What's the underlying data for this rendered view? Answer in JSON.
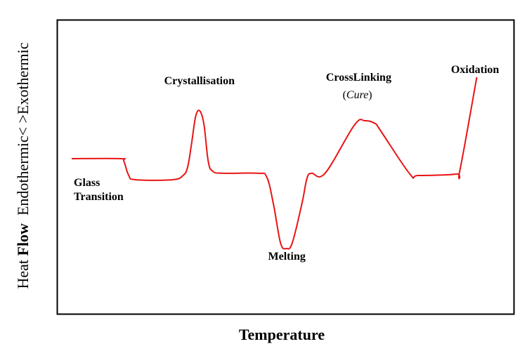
{
  "chart_data": {
    "type": "line",
    "xlabel": "Temperature",
    "ylabel": {
      "prefix": "Heat ",
      "bold": "Flow",
      "suffix": "  Endothermic< >Exothermic"
    },
    "grid": false,
    "legend": "none",
    "line_color": "#e81414",
    "xlim": [
      0,
      100
    ],
    "ylim": [
      0,
      100
    ],
    "series": [
      {
        "values": [
          {
            "x": 0,
            "y": 51
          },
          {
            "x": 11.6,
            "y": 51
          },
          {
            "x": 12.4,
            "y": 50.2
          },
          {
            "x": 13.6,
            "y": 45
          },
          {
            "x": 15.2,
            "y": 43.5
          },
          {
            "x": 24.0,
            "y": 43.5
          },
          {
            "x": 26.5,
            "y": 45
          },
          {
            "x": 27.6,
            "y": 48
          },
          {
            "x": 28.5,
            "y": 56
          },
          {
            "x": 29.5,
            "y": 66
          },
          {
            "x": 30.5,
            "y": 68
          },
          {
            "x": 31.5,
            "y": 63
          },
          {
            "x": 32.5,
            "y": 50
          },
          {
            "x": 33.6,
            "y": 46.5
          },
          {
            "x": 36.0,
            "y": 45.8
          },
          {
            "x": 44.3,
            "y": 45.8
          },
          {
            "x": 46.4,
            "y": 44.5
          },
          {
            "x": 48.0,
            "y": 35
          },
          {
            "x": 49.7,
            "y": 21
          },
          {
            "x": 51.1,
            "y": 19
          },
          {
            "x": 52.5,
            "y": 21
          },
          {
            "x": 54.8,
            "y": 35
          },
          {
            "x": 56.0,
            "y": 44
          },
          {
            "x": 57.1,
            "y": 45.8
          },
          {
            "x": 60.3,
            "y": 45.8
          },
          {
            "x": 67.3,
            "y": 63
          },
          {
            "x": 69.8,
            "y": 64.5
          },
          {
            "x": 72.2,
            "y": 63.5
          },
          {
            "x": 73.5,
            "y": 61
          },
          {
            "x": 80.5,
            "y": 45.5
          },
          {
            "x": 82.5,
            "y": 45
          },
          {
            "x": 91.5,
            "y": 45.5
          },
          {
            "x": 92.4,
            "y": 47
          },
          {
            "x": 96.4,
            "y": 80
          }
        ]
      }
    ],
    "annotations": [
      {
        "lines": [
          "Glass",
          "Transition"
        ],
        "x": 0.5,
        "y": 41.2,
        "anchor": "start"
      },
      {
        "lines": [
          "Crystallisation"
        ],
        "x": 30.4,
        "y": 77.5,
        "anchor": "middle"
      },
      {
        "lines": [
          "Melting"
        ],
        "x": 51.2,
        "y": 15,
        "anchor": "middle"
      },
      {
        "lines": [
          "CrossLinking"
        ],
        "x": 68.3,
        "y": 78.8,
        "anchor": "middle"
      },
      {
        "italic": "Cure",
        "x": 68.0,
        "y": 72.5,
        "anchor": "middle"
      },
      {
        "lines": [
          "Oxidation"
        ],
        "x": 96.0,
        "y": 81.5,
        "anchor": "middle"
      }
    ]
  }
}
